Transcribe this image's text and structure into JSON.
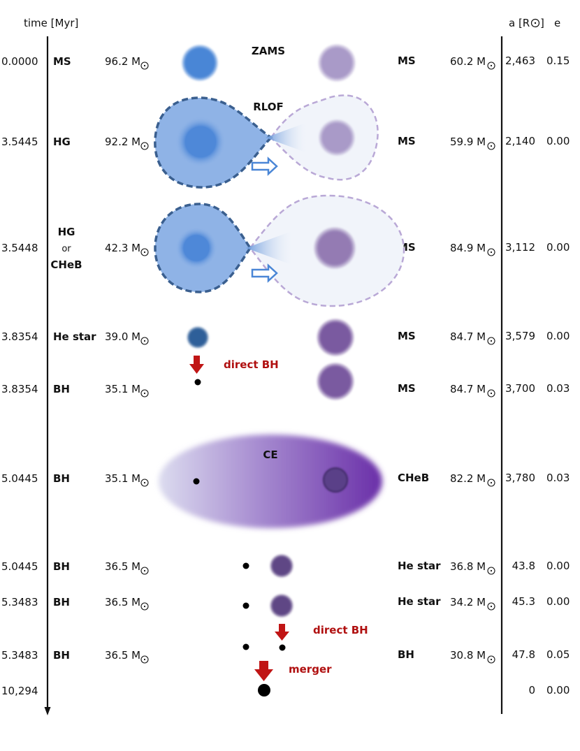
{
  "header": {
    "time_label": "time [Myr]",
    "a_label": "a [R",
    "a_unit_close": "]",
    "e_label": "e"
  },
  "stages": [
    {
      "time": "0.0000",
      "left_type": "MS",
      "left_mass": "96.2 M",
      "right_type": "MS",
      "right_mass": "60.2 M",
      "a": "2,463",
      "e": "0.15"
    },
    {
      "time": "3.5445",
      "left_type": "HG",
      "left_mass": "92.2 M",
      "right_type": "MS",
      "right_mass": "59.9 M",
      "a": "2,140",
      "e": "0.00"
    },
    {
      "time": "3.5448",
      "left_type": "HG",
      "left_type_or": "or",
      "left_type_alt": "CHeB",
      "left_mass": "42.3 M",
      "right_type": "MS",
      "right_mass": "84.9 M",
      "a": "3,112",
      "e": "0.00"
    },
    {
      "time": "3.8354",
      "left_type": "He star",
      "left_mass": "39.0 M",
      "right_type": "MS",
      "right_mass": "84.7 M",
      "a": "3,579",
      "e": "0.00"
    },
    {
      "time": "3.8354",
      "left_type": "BH",
      "left_mass": "35.1 M",
      "right_type": "MS",
      "right_mass": "84.7 M",
      "a": "3,700",
      "e": "0.03"
    },
    {
      "time": "5.0445",
      "left_type": "BH",
      "left_mass": "35.1 M",
      "right_type": "CHeB",
      "right_mass": "82.2 M",
      "a": "3,780",
      "e": "0.03"
    },
    {
      "time": "5.0445",
      "left_type": "BH",
      "left_mass": "36.5 M",
      "right_type": "He star",
      "right_mass": "36.8 M",
      "a": "43.8",
      "e": "0.00"
    },
    {
      "time": "5.3483",
      "left_type": "BH",
      "left_mass": "36.5 M",
      "right_type": "He star",
      "right_mass": "34.2 M",
      "a": "45.3",
      "e": "0.00"
    },
    {
      "time": "5.3483",
      "left_type": "BH",
      "left_mass": "36.5 M",
      "right_type": "BH",
      "right_mass": "30.8 M",
      "a": "47.8",
      "e": "0.05"
    },
    {
      "time": "10,294",
      "a": "0",
      "e": "0.00"
    }
  ],
  "events": {
    "zams": "ZAMS",
    "rlof": "RLOF",
    "direct_bh_1": "direct BH",
    "ce": "CE",
    "direct_bh_2": "direct BH",
    "merger": "merger"
  },
  "colors": {
    "primary_blue": "#4a86d6",
    "lobe_blue": "#8fb3e6",
    "lobe_edge": "#3a5f8f",
    "ms_lilac": "#a99ac8",
    "ms_purple": "#7a5aa0",
    "he_star_blue": "#2f5f99",
    "dark_purple": "#5e4685",
    "ce_purple": "#6a2fa8",
    "arrow_red": "#c01515"
  }
}
